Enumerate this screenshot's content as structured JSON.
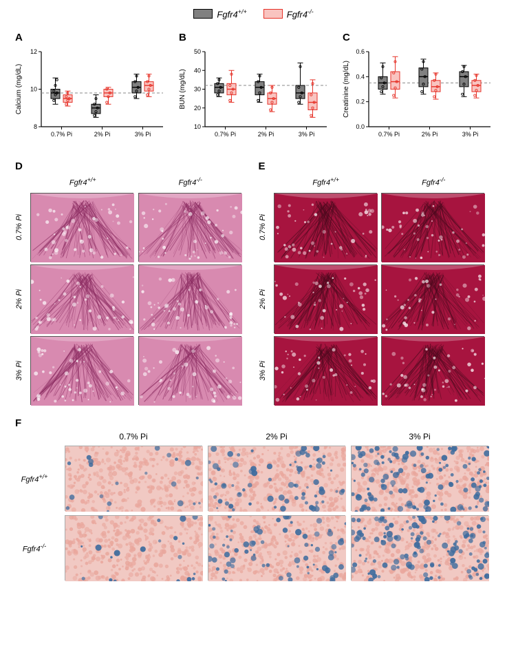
{
  "legend": {
    "wt_label": "Fgfr4",
    "wt_sup": "+/+",
    "wt_color": "#808080",
    "wt_border": "#000000",
    "ko_label": "Fgfr4",
    "ko_sup": "-/-",
    "ko_color": "#f9c4c0",
    "ko_border": "#e63228"
  },
  "categories": [
    "0.7% Pi",
    "2% Pi",
    "3% Pi"
  ],
  "genotype_labels": {
    "wt": "Fgfr4",
    "wt_sup": "+/+",
    "ko": "Fgfr4",
    "ko_sup": "-/-"
  },
  "dose_labels": [
    "0.7% Pi",
    "2% Pi",
    "3% Pi"
  ],
  "panelA": {
    "letter": "A",
    "ylabel": "Calcium (mg/dL)",
    "ymin": 8,
    "ymax": 12,
    "ytick": 2,
    "ref": 9.8,
    "groups": [
      {
        "cat": 0,
        "geno": "wt",
        "min": 9.2,
        "q1": 9.5,
        "med": 9.8,
        "q3": 10.0,
        "max": 10.6,
        "pts": [
          9.4,
          9.7,
          9.8,
          9.9,
          10.2,
          10.5
        ]
      },
      {
        "cat": 0,
        "geno": "ko",
        "min": 9.1,
        "q1": 9.3,
        "med": 9.5,
        "q3": 9.7,
        "max": 9.9,
        "pts": [
          9.2,
          9.4,
          9.5,
          9.6,
          9.8
        ]
      },
      {
        "cat": 1,
        "geno": "wt",
        "min": 8.5,
        "q1": 8.7,
        "med": 9.0,
        "q3": 9.2,
        "max": 9.7,
        "pts": [
          8.6,
          8.8,
          9.0,
          9.2,
          9.5
        ]
      },
      {
        "cat": 1,
        "geno": "ko",
        "min": 9.2,
        "q1": 9.6,
        "med": 9.8,
        "q3": 10.0,
        "max": 10.1,
        "pts": [
          9.3,
          9.6,
          9.8,
          10.0
        ]
      },
      {
        "cat": 2,
        "geno": "wt",
        "min": 9.5,
        "q1": 9.8,
        "med": 10.1,
        "q3": 10.4,
        "max": 10.8,
        "pts": [
          9.6,
          9.9,
          10.1,
          10.4,
          10.7
        ]
      },
      {
        "cat": 2,
        "geno": "ko",
        "min": 9.6,
        "q1": 9.9,
        "med": 10.2,
        "q3": 10.4,
        "max": 10.8,
        "pts": [
          9.7,
          10.0,
          10.2,
          10.4,
          10.7
        ]
      }
    ]
  },
  "panelB": {
    "letter": "B",
    "ylabel": "BUN (mg/dL)",
    "ymin": 10,
    "ymax": 50,
    "ytick": 10,
    "ref": 32,
    "groups": [
      {
        "cat": 0,
        "geno": "wt",
        "min": 26,
        "q1": 28,
        "med": 31,
        "q3": 33,
        "max": 36,
        "pts": [
          27,
          29,
          31,
          33,
          35
        ]
      },
      {
        "cat": 0,
        "geno": "ko",
        "min": 23,
        "q1": 27,
        "med": 30,
        "q3": 33,
        "max": 40,
        "pts": [
          24,
          28,
          30,
          32,
          38
        ]
      },
      {
        "cat": 1,
        "geno": "wt",
        "min": 23,
        "q1": 27,
        "med": 31,
        "q3": 34,
        "max": 38,
        "pts": [
          24,
          28,
          31,
          34,
          37
        ]
      },
      {
        "cat": 1,
        "geno": "ko",
        "min": 18,
        "q1": 22,
        "med": 25,
        "q3": 28,
        "max": 32,
        "pts": [
          19,
          23,
          25,
          28,
          31
        ]
      },
      {
        "cat": 2,
        "geno": "wt",
        "min": 22,
        "q1": 25,
        "med": 28,
        "q3": 32,
        "max": 44,
        "pts": [
          23,
          26,
          28,
          31,
          42
        ]
      },
      {
        "cat": 2,
        "geno": "ko",
        "min": 15,
        "q1": 19,
        "med": 23,
        "q3": 28,
        "max": 35,
        "pts": [
          16,
          20,
          23,
          27,
          33
        ]
      }
    ]
  },
  "panelC": {
    "letter": "C",
    "ylabel": "Creatinine (mg/dL)",
    "ymin": 0.0,
    "ymax": 0.6,
    "ytick": 0.2,
    "ref": 0.35,
    "groups": [
      {
        "cat": 0,
        "geno": "wt",
        "min": 0.26,
        "q1": 0.3,
        "med": 0.35,
        "q3": 0.4,
        "max": 0.51,
        "pts": [
          0.28,
          0.32,
          0.35,
          0.39,
          0.48
        ]
      },
      {
        "cat": 0,
        "geno": "ko",
        "min": 0.23,
        "q1": 0.3,
        "med": 0.36,
        "q3": 0.44,
        "max": 0.56,
        "pts": [
          0.25,
          0.31,
          0.36,
          0.43,
          0.52
        ]
      },
      {
        "cat": 1,
        "geno": "wt",
        "min": 0.26,
        "q1": 0.32,
        "med": 0.4,
        "q3": 0.47,
        "max": 0.54,
        "pts": [
          0.28,
          0.34,
          0.4,
          0.46,
          0.52
        ]
      },
      {
        "cat": 1,
        "geno": "ko",
        "min": 0.22,
        "q1": 0.28,
        "med": 0.32,
        "q3": 0.37,
        "max": 0.43,
        "pts": [
          0.24,
          0.29,
          0.32,
          0.37,
          0.42
        ]
      },
      {
        "cat": 2,
        "geno": "wt",
        "min": 0.24,
        "q1": 0.32,
        "med": 0.4,
        "q3": 0.44,
        "max": 0.49,
        "pts": [
          0.26,
          0.34,
          0.4,
          0.44,
          0.48
        ]
      },
      {
        "cat": 2,
        "geno": "ko",
        "min": 0.23,
        "q1": 0.28,
        "med": 0.33,
        "q3": 0.37,
        "max": 0.42,
        "pts": [
          0.25,
          0.29,
          0.33,
          0.37,
          0.41
        ]
      }
    ]
  },
  "panelD": {
    "letter": "D",
    "tint": "#d88ab0",
    "dark": "#8d2e63"
  },
  "panelE": {
    "letter": "E",
    "tint": "#a7143f",
    "dark": "#4c0a1e"
  },
  "panelF": {
    "letter": "F",
    "base": "#f1c9c3",
    "spot": "#3e6c9e"
  },
  "colors": {
    "bg": "#ffffff",
    "axis": "#000000",
    "ref_line": "#888888"
  }
}
